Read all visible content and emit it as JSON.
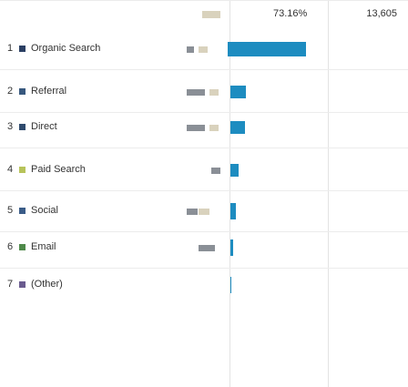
{
  "header": {
    "percent": "73.16%",
    "total": "13,605"
  },
  "bar_color": "#1d8cc0",
  "rows": [
    {
      "rank": "1",
      "label": "Organic Search",
      "color": "#2b3f63",
      "share": 73.16
    },
    {
      "rank": "2",
      "label": "Referral",
      "color": "#37587e",
      "share": 14.5
    },
    {
      "rank": "3",
      "label": "Direct",
      "color": "#2f4a6d",
      "share": 13.6
    },
    {
      "rank": "4",
      "label": "Paid Search",
      "color": "#b7c35a",
      "share": 7.7
    },
    {
      "rank": "5",
      "label": "Social",
      "color": "#3a5c88",
      "share": 5.1
    },
    {
      "rank": "6",
      "label": "Email",
      "color": "#4f8a4a",
      "share": 2.6
    },
    {
      "rank": "7",
      "label": "(Other)",
      "color": "#6a5b8f",
      "share": 0.9
    }
  ]
}
